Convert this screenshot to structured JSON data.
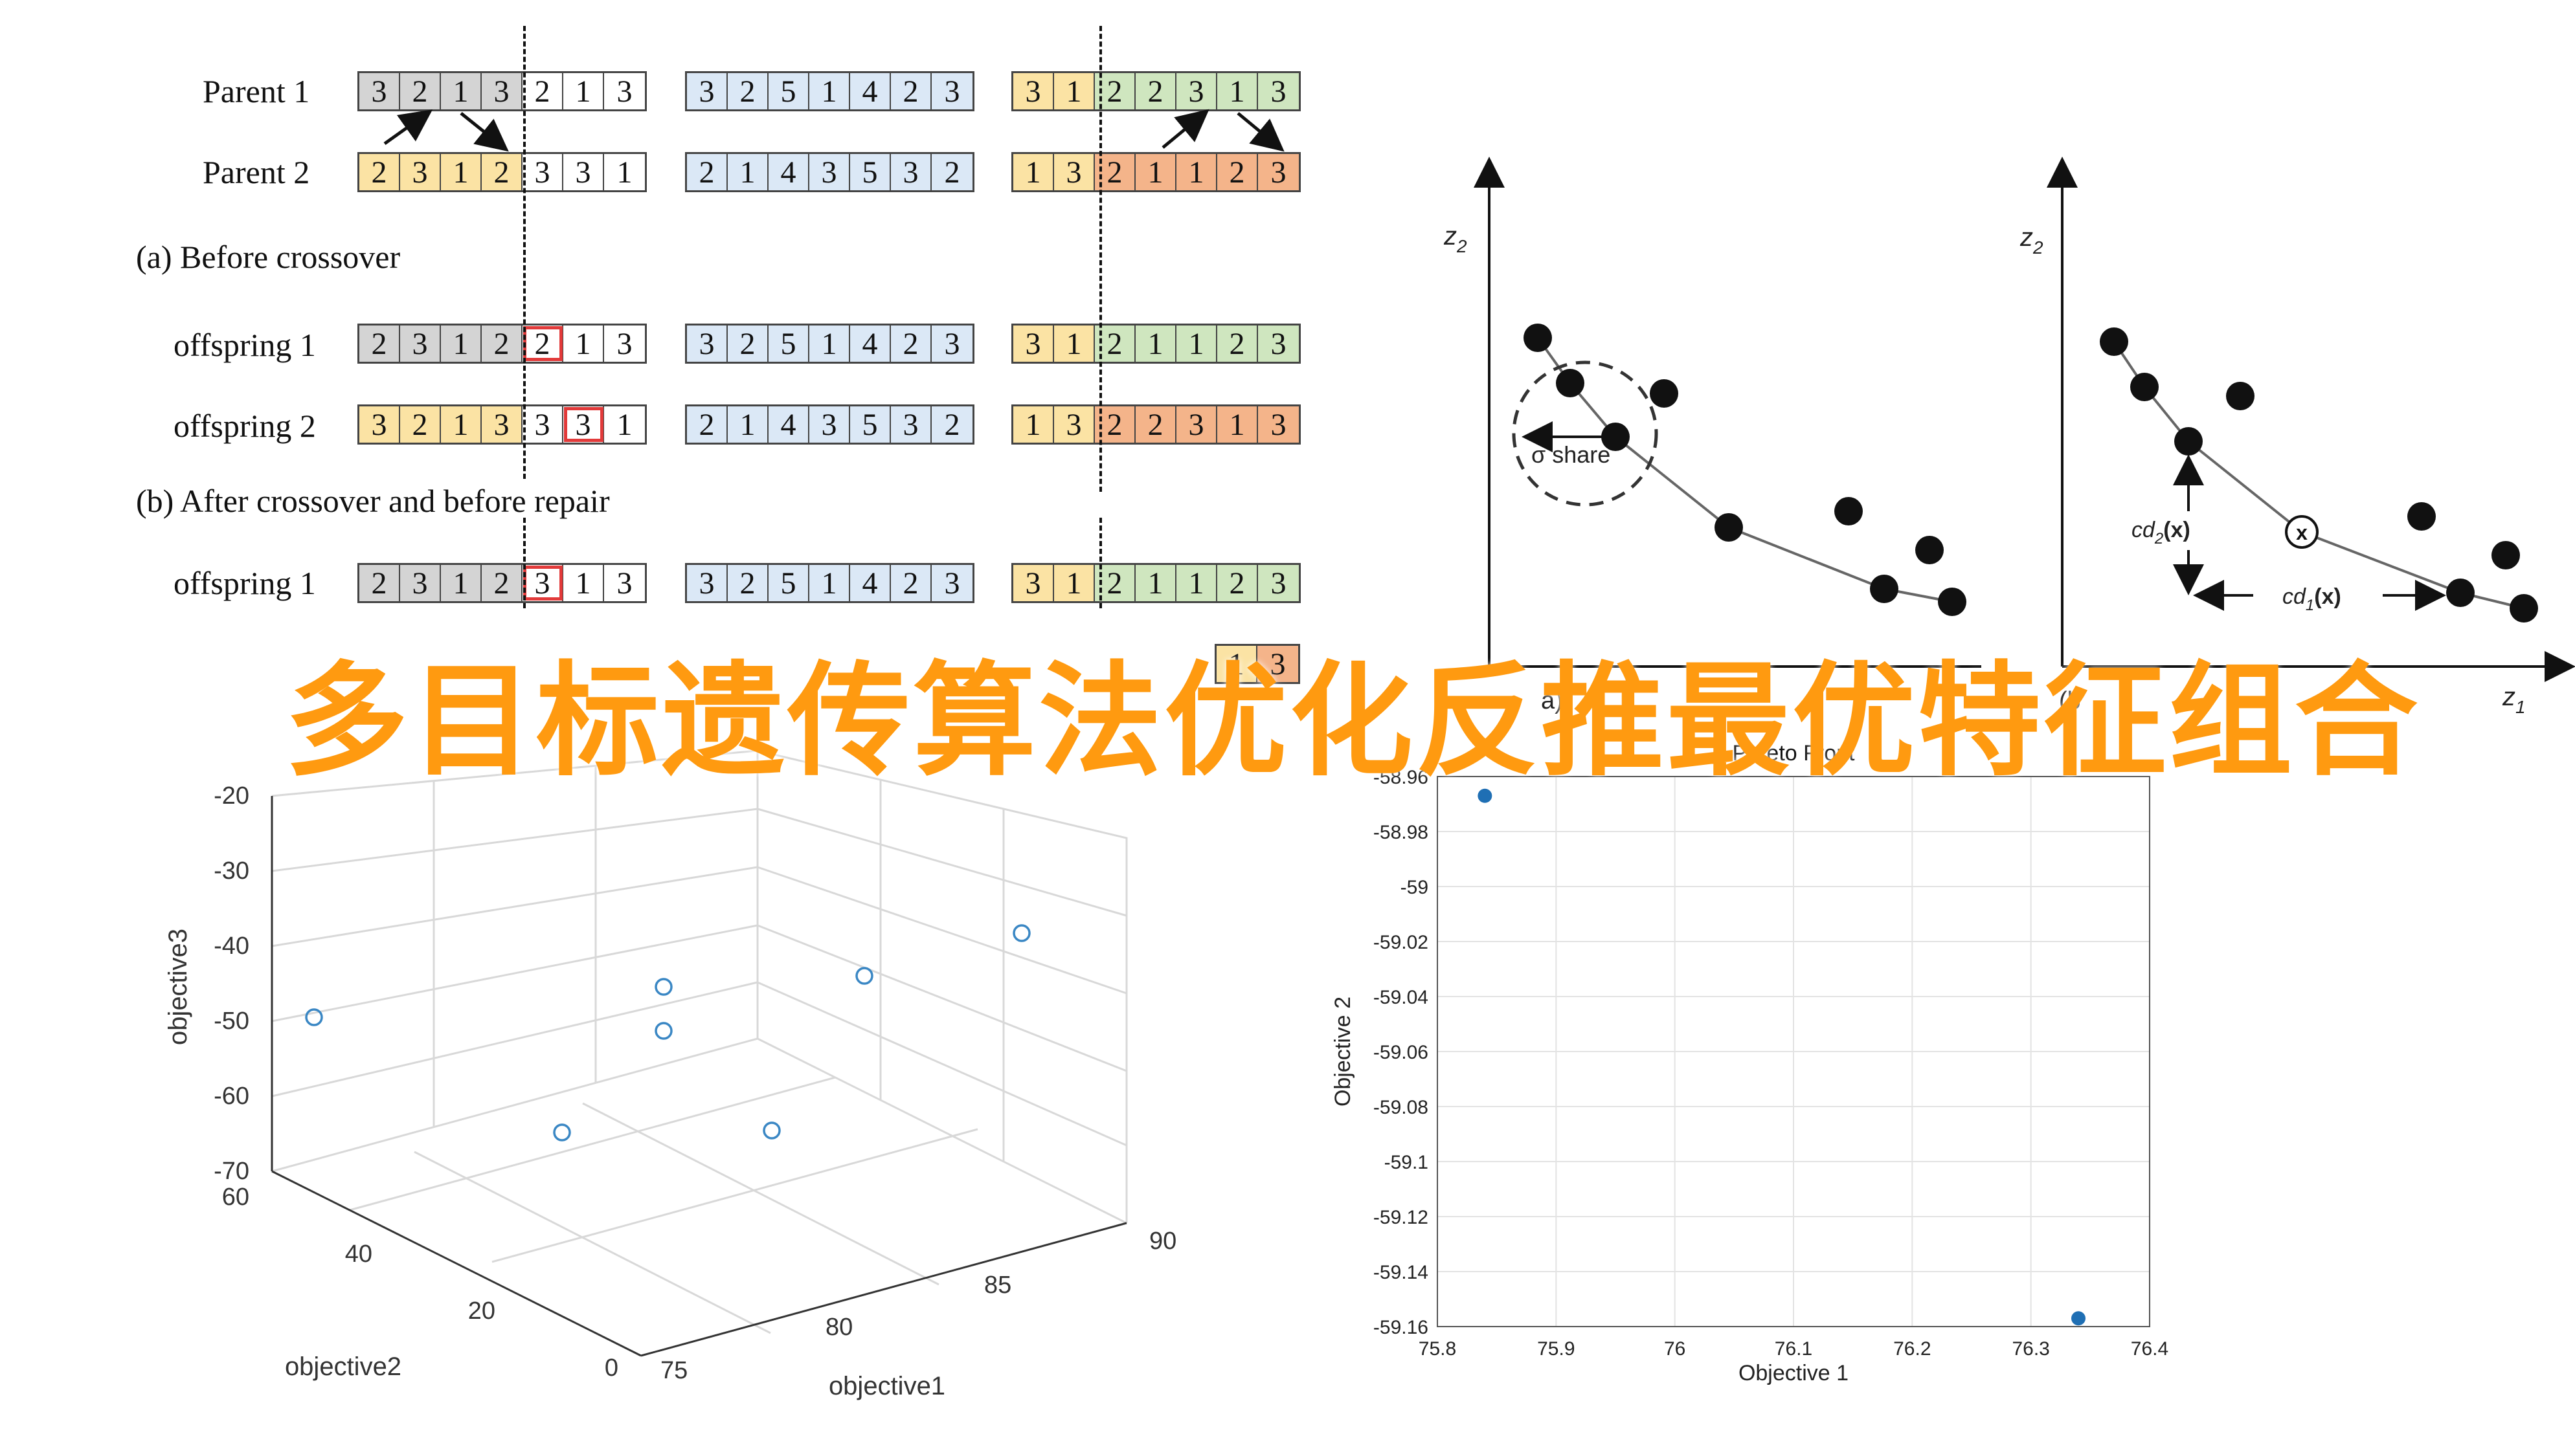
{
  "crossover": {
    "rows": [
      {
        "label": "Parent 1",
        "groups": [
          {
            "cells": [
              "3",
              "2",
              "1",
              "3",
              "2",
              "1",
              "3"
            ],
            "colors": [
              "gray",
              "gray",
              "gray",
              "gray",
              "white",
              "white",
              "white"
            ]
          },
          {
            "cells": [
              "3",
              "2",
              "5",
              "1",
              "4",
              "2",
              "3"
            ],
            "colors": [
              "blue",
              "blue",
              "blue",
              "blue",
              "blue",
              "blue",
              "blue"
            ]
          },
          {
            "cells": [
              "3",
              "1",
              "2",
              "2",
              "3",
              "1",
              "3"
            ],
            "colors": [
              "yellow",
              "yellow",
              "green",
              "green",
              "green",
              "green",
              "green"
            ]
          }
        ]
      },
      {
        "label": "Parent 2",
        "groups": [
          {
            "cells": [
              "2",
              "3",
              "1",
              "2",
              "3",
              "3",
              "1"
            ],
            "colors": [
              "yellow",
              "yellow",
              "yellow",
              "yellow",
              "white",
              "white",
              "white"
            ]
          },
          {
            "cells": [
              "2",
              "1",
              "4",
              "3",
              "5",
              "3",
              "2"
            ],
            "colors": [
              "blue",
              "blue",
              "blue",
              "blue",
              "blue",
              "blue",
              "blue"
            ]
          },
          {
            "cells": [
              "1",
              "3",
              "2",
              "1",
              "1",
              "2",
              "3"
            ],
            "colors": [
              "yellow",
              "yellow",
              "orange",
              "orange",
              "orange",
              "orange",
              "orange"
            ]
          }
        ]
      },
      {
        "label": "offspring 1",
        "groups": [
          {
            "cells": [
              "2",
              "3",
              "1",
              "2",
              "2",
              "1",
              "3"
            ],
            "colors": [
              "gray",
              "gray",
              "gray",
              "gray",
              "white",
              "white",
              "white"
            ],
            "marked": [
              4
            ]
          },
          {
            "cells": [
              "3",
              "2",
              "5",
              "1",
              "4",
              "2",
              "3"
            ],
            "colors": [
              "blue",
              "blue",
              "blue",
              "blue",
              "blue",
              "blue",
              "blue"
            ]
          },
          {
            "cells": [
              "3",
              "1",
              "2",
              "1",
              "1",
              "2",
              "3"
            ],
            "colors": [
              "yellow",
              "yellow",
              "green",
              "green",
              "green",
              "green",
              "green"
            ]
          }
        ]
      },
      {
        "label": "offspring 2",
        "groups": [
          {
            "cells": [
              "3",
              "2",
              "1",
              "3",
              "3",
              "3",
              "1"
            ],
            "colors": [
              "yellow",
              "yellow",
              "yellow",
              "yellow",
              "white",
              "white",
              "white"
            ],
            "marked": [
              5
            ]
          },
          {
            "cells": [
              "2",
              "1",
              "4",
              "3",
              "5",
              "3",
              "2"
            ],
            "colors": [
              "blue",
              "blue",
              "blue",
              "blue",
              "blue",
              "blue",
              "blue"
            ]
          },
          {
            "cells": [
              "1",
              "3",
              "2",
              "2",
              "3",
              "1",
              "3"
            ],
            "colors": [
              "yellow",
              "yellow",
              "orange",
              "orange",
              "orange",
              "orange",
              "orange"
            ]
          }
        ]
      },
      {
        "label": "offspring 1",
        "groups": [
          {
            "cells": [
              "2",
              "3",
              "1",
              "2",
              "3",
              "1",
              "3"
            ],
            "colors": [
              "gray",
              "gray",
              "gray",
              "gray",
              "white",
              "white",
              "white"
            ],
            "marked": [
              4
            ]
          },
          {
            "cells": [
              "3",
              "2",
              "5",
              "1",
              "4",
              "2",
              "3"
            ],
            "colors": [
              "blue",
              "blue",
              "blue",
              "blue",
              "blue",
              "blue",
              "blue"
            ]
          },
          {
            "cells": [
              "3",
              "1",
              "2",
              "1",
              "1",
              "2",
              "3"
            ],
            "colors": [
              "yellow",
              "yellow",
              "green",
              "green",
              "green",
              "green",
              "green"
            ]
          }
        ]
      }
    ],
    "partial_row": {
      "cells": [
        "1",
        "3"
      ],
      "colors": [
        "yellow",
        "orange"
      ]
    },
    "caption_a": "(a) Before crossover",
    "caption_b": "(b) After crossover and before repair"
  },
  "banner_title": "多目标遗传算法优化反推最优特征组合",
  "niche_diagram": {
    "z2_label": "z",
    "z2_sub": "2",
    "z1_label": "z",
    "z1_sub": "1",
    "sigma_label": "σ share",
    "cd2_label": "cd",
    "cd2_sub": "2",
    "cd2_arg": "(x)",
    "cd1_label": "cd",
    "cd1_sub": "1",
    "cd1_arg": "(x)",
    "x_marker": "x",
    "caption_a_fragment": "a)",
    "caption_b_fragment": "(b"
  },
  "scatter3d": {
    "zlabel": "objective3",
    "ylabel": "objective2",
    "xlabel": "objective1",
    "z_ticks": [
      "-20",
      "-30",
      "-40",
      "-50",
      "-60",
      "-70"
    ],
    "y_ticks": [
      "60",
      "40",
      "20",
      "0"
    ],
    "x_ticks": [
      "75",
      "80",
      "85",
      "90"
    ],
    "marker_color": "#3a87c4"
  },
  "chart_data": {
    "type": "scatter",
    "title": "Pareto Front",
    "xlabel": "Objective 1",
    "ylabel": "Objective 2",
    "xlim": [
      75.8,
      76.4
    ],
    "ylim": [
      -59.16,
      -58.96
    ],
    "x_ticks": [
      "75.8",
      "75.9",
      "76",
      "76.1",
      "76.2",
      "76.3",
      "76.4"
    ],
    "y_ticks": [
      "-58.96",
      "-58.98",
      "-59",
      "-59.02",
      "-59.04",
      "-59.06",
      "-59.08",
      "-59.1",
      "-59.12",
      "-59.14",
      "-59.16"
    ],
    "grid": true,
    "points": [
      {
        "x": 75.84,
        "y": -58.967
      },
      {
        "x": 76.34,
        "y": -59.157
      }
    ],
    "marker_color": "#1f6fb4"
  }
}
